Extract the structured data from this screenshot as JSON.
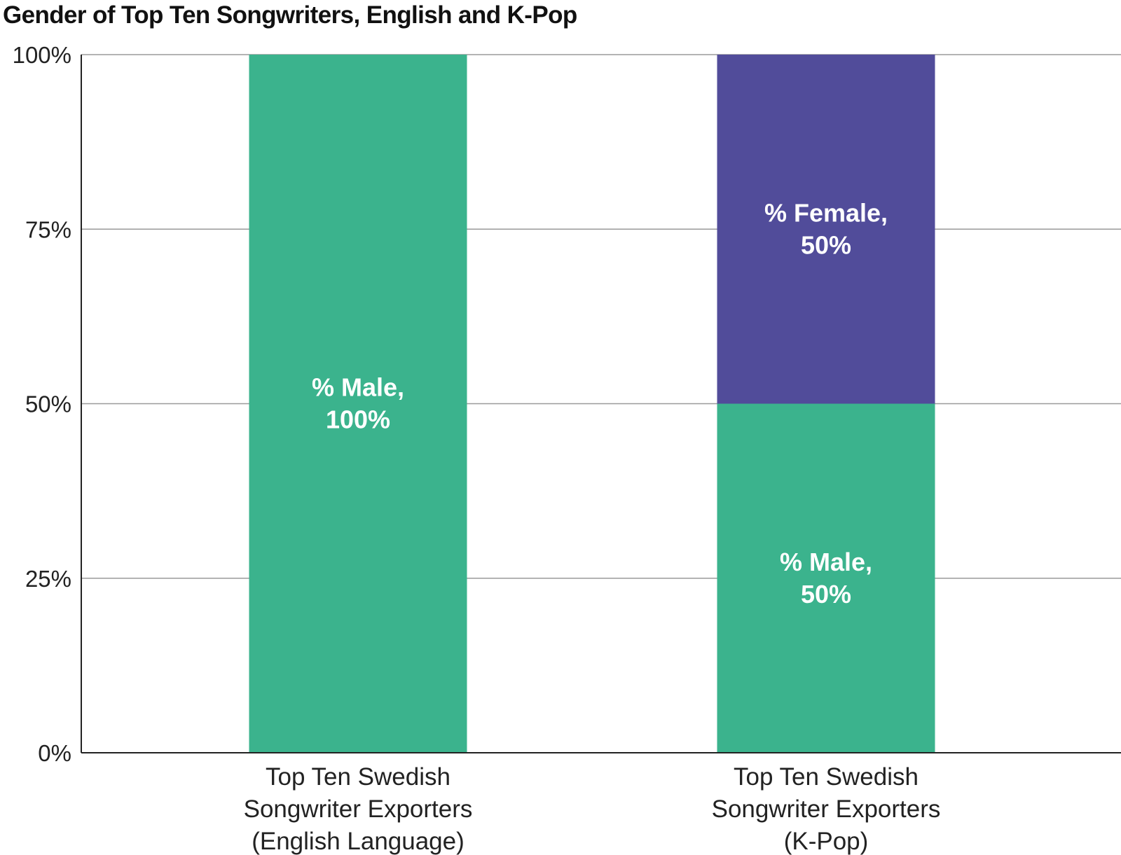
{
  "chart_data": {
    "type": "bar",
    "stacked": true,
    "title": "Gender of Top Ten Songwriters, English and K-Pop",
    "xlabel": "",
    "ylabel": "",
    "ylim": [
      0,
      100
    ],
    "y_ticks": [
      "0%",
      "25%",
      "50%",
      "75%",
      "100%"
    ],
    "grid": true,
    "legend": "none",
    "categories": [
      [
        "Top Ten Swedish",
        "Songwriter Exporters",
        "(English Language)"
      ],
      [
        "Top Ten Swedish",
        "Songwriter Exporters",
        "(K-Pop)"
      ]
    ],
    "series": [
      {
        "name": "% Male",
        "color": "#3bb38d",
        "values": [
          100,
          50
        ],
        "data_labels": [
          [
            "% Male,",
            "100%"
          ],
          [
            "% Male,",
            "50%"
          ]
        ]
      },
      {
        "name": "% Female",
        "color": "#514c9a",
        "values": [
          0,
          50
        ],
        "data_labels": [
          null,
          [
            "% Female,",
            "50%"
          ]
        ]
      }
    ]
  }
}
